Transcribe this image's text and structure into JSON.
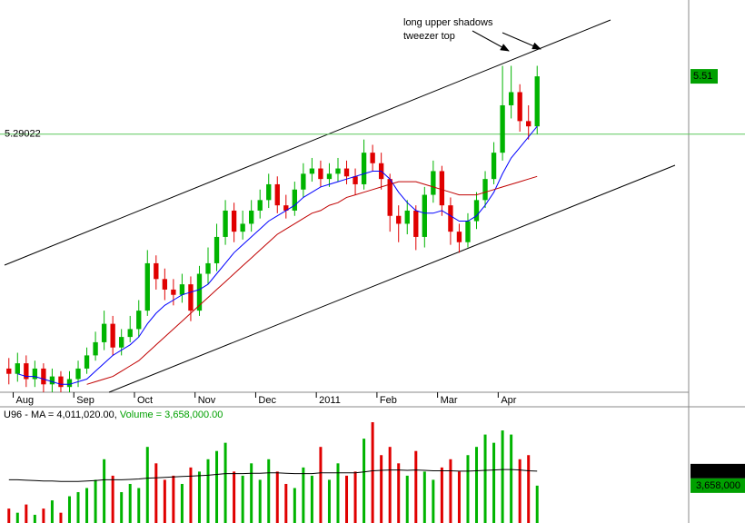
{
  "chart_data": [
    {
      "type": "candlestick",
      "categories": [
        null,
        "Aug",
        null,
        null,
        null,
        null,
        null,
        null,
        "Sep",
        null,
        null,
        null,
        null,
        null,
        null,
        "Oct",
        null,
        null,
        null,
        null,
        null,
        null,
        "Nov",
        null,
        null,
        null,
        null,
        null,
        null,
        "Dec",
        null,
        null,
        null,
        null,
        null,
        null,
        "2011",
        null,
        null,
        null,
        null,
        null,
        null,
        "Feb",
        null,
        null,
        null,
        null,
        null,
        null,
        "Mar",
        null,
        null,
        null,
        null,
        null,
        null,
        "Apr",
        null,
        null,
        null,
        null
      ],
      "open": [
        4.4,
        4.38,
        4.42,
        4.36,
        4.4,
        4.34,
        4.37,
        4.33,
        4.36,
        4.4,
        4.45,
        4.5,
        4.57,
        4.48,
        4.52,
        4.55,
        4.62,
        4.8,
        4.74,
        4.7,
        4.68,
        4.72,
        4.62,
        4.76,
        4.8,
        4.9,
        5.0,
        4.92,
        4.95,
        5.0,
        5.04,
        5.1,
        5.02,
        5.0,
        5.08,
        5.14,
        5.16,
        5.12,
        5.14,
        5.16,
        5.13,
        5.1,
        5.22,
        5.18,
        5.12,
        4.98,
        4.95,
        5.0,
        4.9,
        5.06,
        5.15,
        5.02,
        4.92,
        4.88,
        4.96,
        5.04,
        5.12,
        5.22,
        5.4,
        5.45,
        5.34,
        5.32
      ],
      "high": [
        4.44,
        4.46,
        4.45,
        4.43,
        4.42,
        4.4,
        4.39,
        4.39,
        4.43,
        4.48,
        4.54,
        4.62,
        4.6,
        4.55,
        4.6,
        4.66,
        4.85,
        4.83,
        4.78,
        4.74,
        4.76,
        4.75,
        4.79,
        4.86,
        4.95,
        5.04,
        5.03,
        5.0,
        5.04,
        5.08,
        5.14,
        5.13,
        5.06,
        5.11,
        5.18,
        5.2,
        5.19,
        5.18,
        5.2,
        5.19,
        5.16,
        5.27,
        5.25,
        5.22,
        5.14,
        5.02,
        5.04,
        5.02,
        5.09,
        5.19,
        5.17,
        5.05,
        4.95,
        4.99,
        5.07,
        5.15,
        5.26,
        5.55,
        5.55,
        5.48,
        5.4,
        5.55
      ],
      "low": [
        4.34,
        4.35,
        4.33,
        4.33,
        4.31,
        4.31,
        4.31,
        4.31,
        4.33,
        4.38,
        4.43,
        4.47,
        4.45,
        4.45,
        4.5,
        4.52,
        4.6,
        4.7,
        4.66,
        4.64,
        4.65,
        4.58,
        4.6,
        4.72,
        4.77,
        4.87,
        4.88,
        4.89,
        4.92,
        4.97,
        5.01,
        4.99,
        4.97,
        4.98,
        5.05,
        5.11,
        5.09,
        5.09,
        5.11,
        5.1,
        5.06,
        5.08,
        5.15,
        5.08,
        4.92,
        4.88,
        4.91,
        4.85,
        4.86,
        5.03,
        4.98,
        4.87,
        4.84,
        4.86,
        4.93,
        5.01,
        5.1,
        5.19,
        5.35,
        5.3,
        5.27,
        5.29
      ],
      "close": [
        4.38,
        4.42,
        4.36,
        4.4,
        4.34,
        4.37,
        4.33,
        4.36,
        4.4,
        4.45,
        4.5,
        4.57,
        4.48,
        4.52,
        4.55,
        4.62,
        4.8,
        4.74,
        4.7,
        4.68,
        4.72,
        4.62,
        4.76,
        4.8,
        4.9,
        5.0,
        4.92,
        4.95,
        5.0,
        5.04,
        5.1,
        5.02,
        5.0,
        5.08,
        5.14,
        5.16,
        5.12,
        5.14,
        5.16,
        5.13,
        5.1,
        5.22,
        5.18,
        5.12,
        4.98,
        4.95,
        5.0,
        4.9,
        5.06,
        5.15,
        5.02,
        4.92,
        4.88,
        4.96,
        5.04,
        5.12,
        5.22,
        5.4,
        5.45,
        5.34,
        5.32,
        5.51
      ],
      "up_color": "#00b400",
      "down_color": "#e00000",
      "moving_averages": [
        {
          "color": "#0000ff",
          "values": [
            null,
            4.38,
            4.37,
            4.37,
            4.36,
            4.35,
            4.34,
            4.34,
            4.35,
            4.36,
            4.39,
            4.42,
            4.45,
            4.47,
            4.49,
            4.52,
            4.57,
            4.61,
            4.64,
            4.66,
            4.68,
            4.69,
            4.7,
            4.72,
            4.76,
            4.8,
            4.84,
            4.87,
            4.9,
            4.93,
            4.96,
            4.98,
            5.0,
            5.02,
            5.05,
            5.07,
            5.09,
            5.1,
            5.11,
            5.12,
            5.13,
            5.14,
            5.15,
            5.15,
            5.12,
            5.07,
            5.03,
            5.0,
            4.99,
            4.99,
            5.0,
            4.98,
            4.96,
            4.96,
            4.98,
            5.02,
            5.07,
            5.14,
            5.2,
            5.24,
            5.28,
            5.32
          ]
        },
        {
          "color": "#c00000",
          "values": [
            null,
            null,
            null,
            null,
            null,
            null,
            null,
            null,
            null,
            4.34,
            4.35,
            4.36,
            4.37,
            4.39,
            4.41,
            4.43,
            4.46,
            4.49,
            4.52,
            4.55,
            4.58,
            4.61,
            4.64,
            4.67,
            4.7,
            4.73,
            4.76,
            4.79,
            4.82,
            4.85,
            4.88,
            4.91,
            4.93,
            4.95,
            4.97,
            4.99,
            5.0,
            5.02,
            5.03,
            5.05,
            5.06,
            5.07,
            5.08,
            5.09,
            5.1,
            5.11,
            5.11,
            5.11,
            5.1,
            5.09,
            5.08,
            5.07,
            5.06,
            5.06,
            5.06,
            5.07,
            5.08,
            5.09,
            5.1,
            5.11,
            5.12,
            5.13
          ]
        }
      ],
      "ylim": [
        4.31,
        5.8
      ],
      "reference_line": 5.29022,
      "last_price": 5.51,
      "annotations": [
        "long upper shadows",
        "tweezer top"
      ]
    },
    {
      "type": "bar",
      "title": "U96 - MA = 4,011,020.00,",
      "subtitle": "Volume = 3,658,000.00",
      "values": [
        3100000,
        3000000,
        3200000,
        2950000,
        3100000,
        3300000,
        3000000,
        3400000,
        3500000,
        3600000,
        3800000,
        4300000,
        3900000,
        3500000,
        3700000,
        3600000,
        4600000,
        4200000,
        3800000,
        3900000,
        3700000,
        4100000,
        4000000,
        4300000,
        4500000,
        4700000,
        4000000,
        3900000,
        4200000,
        3800000,
        4300000,
        4000000,
        3700000,
        3600000,
        4100000,
        3900000,
        4600000,
        3800000,
        4200000,
        3900000,
        4000000,
        4800000,
        5200000,
        4400000,
        4600000,
        4200000,
        3900000,
        4500000,
        4000000,
        3800000,
        4100000,
        4300000,
        4000000,
        4400000,
        4600000,
        4900000,
        4700000,
        5000000,
        4900000,
        4300000,
        4400000,
        3658000
      ],
      "moving_average": {
        "color": "#000000",
        "values": [
          3800000,
          3800000,
          3790000,
          3780000,
          3770000,
          3770000,
          3760000,
          3760000,
          3760000,
          3770000,
          3780000,
          3800000,
          3800000,
          3800000,
          3810000,
          3820000,
          3840000,
          3850000,
          3860000,
          3870000,
          3880000,
          3890000,
          3900000,
          3910000,
          3930000,
          3950000,
          3950000,
          3950000,
          3960000,
          3960000,
          3970000,
          3970000,
          3960000,
          3950000,
          3950000,
          3950000,
          3970000,
          3970000,
          3970000,
          3970000,
          3970000,
          3990000,
          4020000,
          4030000,
          4040000,
          4040000,
          4030000,
          4040000,
          4030000,
          4020000,
          4020000,
          4020000,
          4010000,
          4010000,
          4020000,
          4030000,
          4040000,
          4050000,
          4050000,
          4040000,
          4020000,
          4011020
        ]
      },
      "ylim": [
        2750000,
        5200000
      ],
      "markers": [
        {
          "value": 4011020,
          "label": "4,011,020",
          "color": "#000000"
        },
        {
          "value": 3658000,
          "label": "3,658,000",
          "color": "#00a000"
        }
      ]
    }
  ]
}
